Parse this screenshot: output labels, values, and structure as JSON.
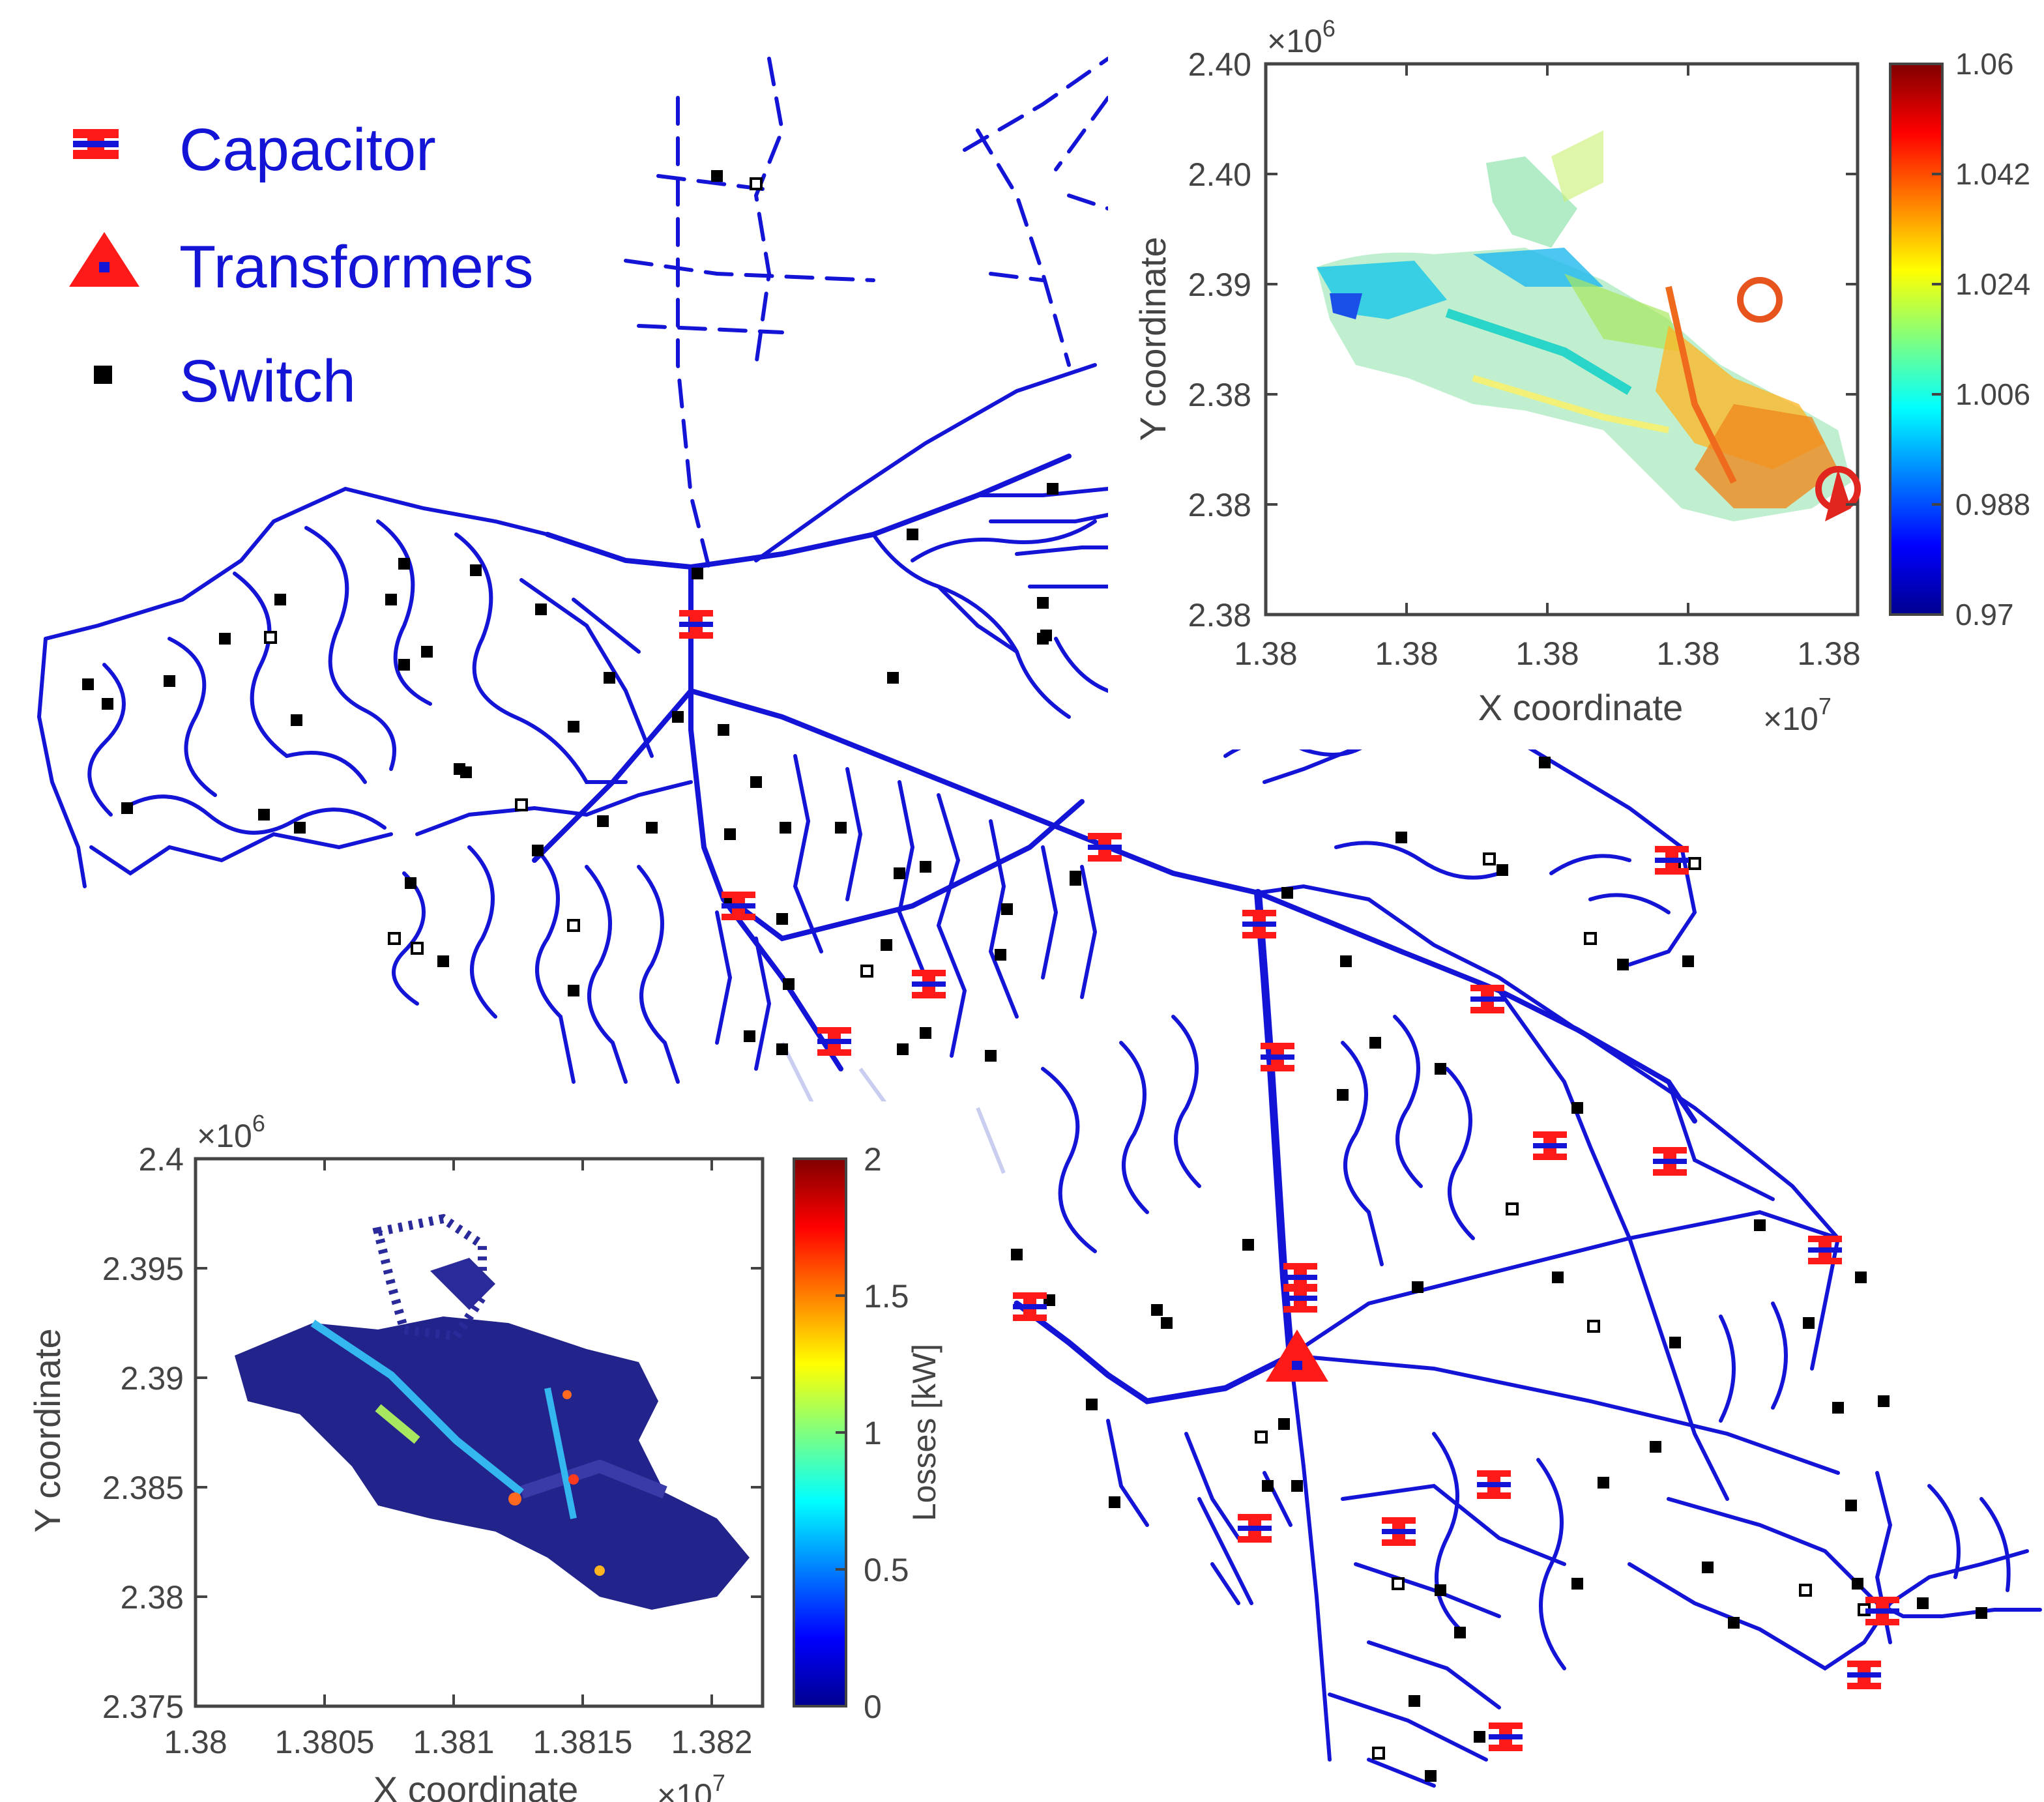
{
  "legend": {
    "items": [
      {
        "label": "Capacitor",
        "icon": "capacitor-icon",
        "color": "#ff1a1a"
      },
      {
        "label": "Transformers",
        "icon": "transformer-icon",
        "color": "#ff1a1a"
      },
      {
        "label": "Switch",
        "icon": "switch-icon",
        "color": "#000000"
      }
    ]
  },
  "colors": {
    "line": "#1414d6",
    "capacitor": "#ff1a1a",
    "switch": "#000000",
    "text": "#1414d6"
  },
  "chart_data": [
    {
      "type": "scatter",
      "name_hint": "voltage inset",
      "xlabel": "X coordinate",
      "ylabel": "Y coordinate",
      "x_multiplier": "×10",
      "x_exponent": "7",
      "y_multiplier": "×10",
      "y_exponent": "6",
      "x_ticks": [
        "1.38",
        "1.38",
        "1.38",
        "1.38",
        "1.38"
      ],
      "y_ticks": [
        "2.40",
        "2.40",
        "2.39",
        "2.38",
        "2.38",
        "2.38"
      ],
      "colorbar": {
        "ticks": [
          "1.06",
          "1.042",
          "1.024",
          "1.006",
          "0.988",
          "0.97"
        ],
        "range": [
          0.97,
          1.06
        ],
        "label": "",
        "colormap": "jet"
      }
    },
    {
      "type": "scatter",
      "name_hint": "losses inset",
      "xlabel": "X coordinate",
      "ylabel": "Y coordinate",
      "x_multiplier": "×10",
      "x_exponent": "7",
      "y_multiplier": "×10",
      "y_exponent": "6",
      "x_ticks": [
        "1.38",
        "1.3805",
        "1.381",
        "1.3815",
        "1.382"
      ],
      "y_ticks": [
        "2.4",
        "2.395",
        "2.39",
        "2.385",
        "2.38",
        "2.375"
      ],
      "xlim": [
        1.38,
        1.3822
      ],
      "ylim": [
        2.375,
        2.4
      ],
      "colorbar": {
        "ticks": [
          "2",
          "1.5",
          "1",
          "0.5",
          "0"
        ],
        "range": [
          0,
          2
        ],
        "label": "Losses [kW]",
        "colormap": "jet"
      }
    }
  ]
}
